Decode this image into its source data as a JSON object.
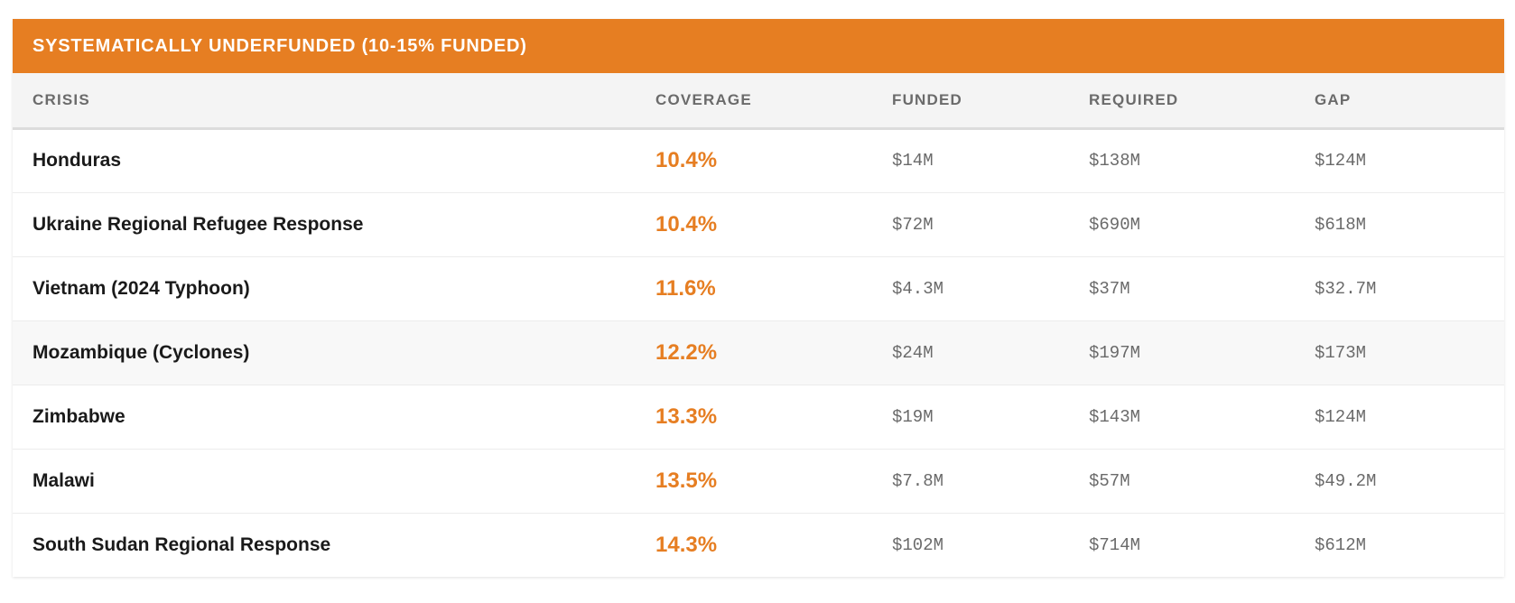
{
  "panel": {
    "title": "SYSTEMATICALLY UNDERFUNDED (10-15% FUNDED)",
    "accent_color": "#e67e22"
  },
  "columns": {
    "crisis": "CRISIS",
    "coverage": "COVERAGE",
    "funded": "FUNDED",
    "required": "REQUIRED",
    "gap": "GAP"
  },
  "rows": [
    {
      "crisis": "Honduras",
      "coverage": "10.4%",
      "funded": "$14M",
      "required": "$138M",
      "gap": "$124M"
    },
    {
      "crisis": "Ukraine Regional Refugee Response",
      "coverage": "10.4%",
      "funded": "$72M",
      "required": "$690M",
      "gap": "$618M"
    },
    {
      "crisis": "Vietnam (2024 Typhoon)",
      "coverage": "11.6%",
      "funded": "$4.3M",
      "required": "$37M",
      "gap": "$32.7M"
    },
    {
      "crisis": "Mozambique (Cyclones)",
      "coverage": "12.2%",
      "funded": "$24M",
      "required": "$197M",
      "gap": "$173M"
    },
    {
      "crisis": "Zimbabwe",
      "coverage": "13.3%",
      "funded": "$19M",
      "required": "$143M",
      "gap": "$124M"
    },
    {
      "crisis": "Malawi",
      "coverage": "13.5%",
      "funded": "$7.8M",
      "required": "$57M",
      "gap": "$49.2M"
    },
    {
      "crisis": "South Sudan Regional Response",
      "coverage": "14.3%",
      "funded": "$102M",
      "required": "$714M",
      "gap": "$612M"
    }
  ]
}
